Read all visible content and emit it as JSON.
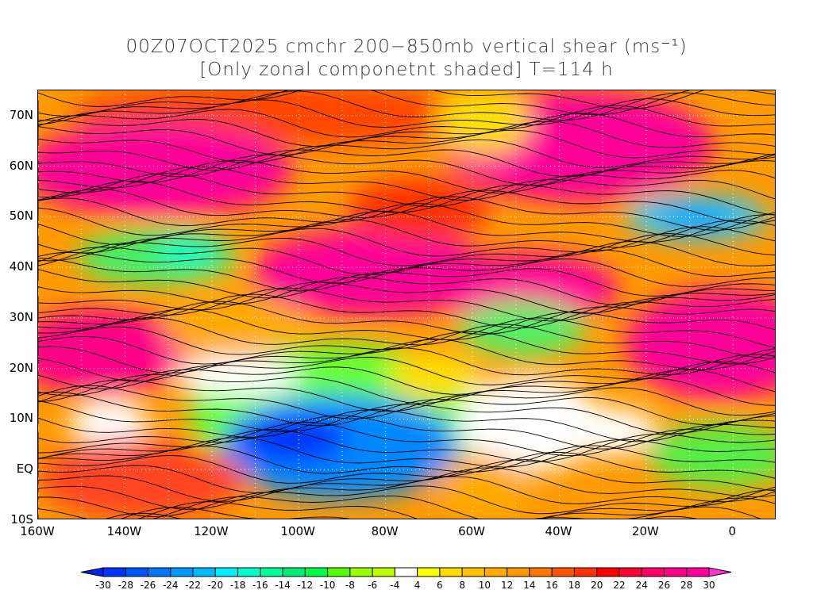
{
  "title": {
    "line1": "00Z07OCT2025 cmchr 200−850mb vertical shear (ms⁻¹)",
    "line2": "[Only zonal componetnt shaded] T=114 h"
  },
  "axes": {
    "lat_labels": [
      {
        "label": "70N",
        "lat": 70
      },
      {
        "label": "60N",
        "lat": 60
      },
      {
        "label": "50N",
        "lat": 50
      },
      {
        "label": "40N",
        "lat": 40
      },
      {
        "label": "30N",
        "lat": 30
      },
      {
        "label": "20N",
        "lat": 20
      },
      {
        "label": "10N",
        "lat": 10
      },
      {
        "label": "EQ",
        "lat": 0
      },
      {
        "label": "10S",
        "lat": -10
      }
    ],
    "lon_labels": [
      {
        "label": "160W",
        "lon": -160
      },
      {
        "label": "140W",
        "lon": -140
      },
      {
        "label": "120W",
        "lon": -120
      },
      {
        "label": "100W",
        "lon": -100
      },
      {
        "label": "80W",
        "lon": -80
      },
      {
        "label": "60W",
        "lon": -60
      },
      {
        "label": "40W",
        "lon": -40
      },
      {
        "label": "20W",
        "lon": -20
      },
      {
        "label": "0",
        "lon": 0
      }
    ],
    "lat_range": [
      -10,
      75
    ],
    "lon_range": [
      -160,
      10
    ]
  },
  "colorbar": {
    "labels": [
      "-30",
      "-28",
      "-26",
      "-24",
      "-22",
      "-20",
      "-18",
      "-16",
      "-14",
      "-12",
      "-10",
      "-8",
      "-6",
      "-4",
      "4",
      "6",
      "8",
      "10",
      "12",
      "14",
      "16",
      "18",
      "20",
      "22",
      "24",
      "26",
      "28",
      "30"
    ],
    "low_arrow_color": "#0022ee",
    "high_arrow_color": "#ff33cc",
    "colors": [
      "#0033ff",
      "#0055ff",
      "#0077ff",
      "#0099ff",
      "#00bbff",
      "#00eeff",
      "#00ffcc",
      "#00ff99",
      "#00ee77",
      "#00ff44",
      "#55ff00",
      "#99ff00",
      "#bbff00",
      "#ffffff",
      "#ffff00",
      "#ffdd00",
      "#ffc000",
      "#ffaa00",
      "#ff9900",
      "#ff7700",
      "#ff5500",
      "#ff3300",
      "#ff0000",
      "#ff0033",
      "#ff0066",
      "#ff0088",
      "#ff0099"
    ]
  }
}
